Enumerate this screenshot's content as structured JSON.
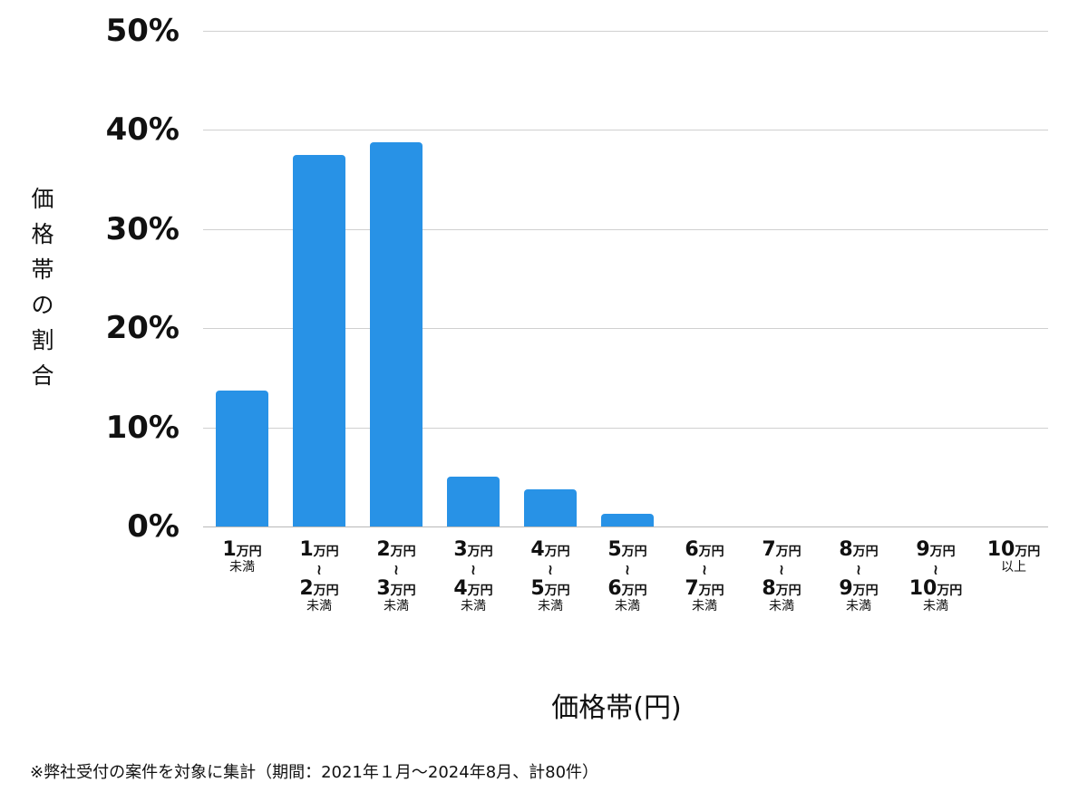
{
  "chart_data": {
    "type": "bar",
    "title": "",
    "xlabel": "価格帯(円)",
    "ylabel": "価格帯の割合",
    "ylim": [
      0,
      50
    ],
    "yticks": [
      "0%",
      "10%",
      "20%",
      "30%",
      "40%",
      "50%"
    ],
    "grid": true,
    "legend": null,
    "categories": [
      "1万円未満",
      "1万円〜2万円未満",
      "2万円〜3万円未満",
      "3万円〜4万円未満",
      "4万円〜5万円未満",
      "5万円〜6万円未満",
      "6万円〜7万円未満",
      "7万円〜8万円未満",
      "8万円〜9万円未満",
      "9万円〜10万円未満",
      "10万円以上"
    ],
    "values": [
      13.75,
      37.5,
      38.75,
      5.0,
      3.75,
      1.25,
      0,
      0,
      0,
      0,
      0
    ],
    "bar_color": "#2892e6",
    "annotation": "※弊社受付の案件を対象に集計（期間：2021年１月〜2024年8月、計80件）"
  },
  "axis": {
    "yticks": [
      "0%",
      "10%",
      "20%",
      "30%",
      "40%",
      "50%"
    ],
    "ylabel_chars": [
      "価",
      "格",
      "帯",
      "の",
      "割",
      "合"
    ],
    "xlabel": "価格帯(円)"
  },
  "xcats": [
    {
      "from": "1",
      "to": "",
      "sub": "未満"
    },
    {
      "from": "1",
      "to": "2",
      "sub": "未満"
    },
    {
      "from": "2",
      "to": "3",
      "sub": "未満"
    },
    {
      "from": "3",
      "to": "4",
      "sub": "未満"
    },
    {
      "from": "4",
      "to": "5",
      "sub": "未満"
    },
    {
      "from": "5",
      "to": "6",
      "sub": "未満"
    },
    {
      "from": "6",
      "to": "7",
      "sub": "未満"
    },
    {
      "from": "7",
      "to": "8",
      "sub": "未満"
    },
    {
      "from": "8",
      "to": "9",
      "sub": "未満"
    },
    {
      "from": "9",
      "to": "10",
      "sub": "未満"
    },
    {
      "from": "10",
      "to": "",
      "sub": "以上"
    }
  ],
  "unit": "万円",
  "tilde": "≀",
  "note": "※弊社受付の案件を対象に集計（期間：2021年１月〜2024年8月、計80件）"
}
